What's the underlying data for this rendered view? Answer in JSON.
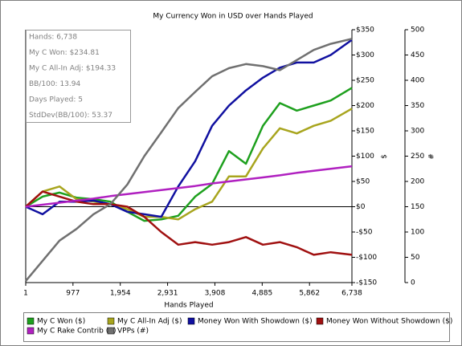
{
  "chart_data": {
    "type": "line",
    "title": "My Currency Won in USD over Hands Played",
    "xlabel": "Hands Played",
    "ylabel": "$",
    "y2label": "#",
    "x": [
      1,
      350,
      700,
      1050,
      1400,
      1750,
      2100,
      2450,
      2800,
      3150,
      3500,
      3850,
      4200,
      4550,
      4900,
      5250,
      5600,
      5950,
      6300,
      6738
    ],
    "xlim": [
      1,
      6738
    ],
    "xticks": [
      1,
      977,
      {
        "value": 1954,
        "label": "1,954"
      },
      {
        "value": 2931,
        "label": "2,931"
      },
      {
        "value": 3908,
        "label": "3,908"
      },
      {
        "value": 4885,
        "label": "4,885"
      },
      {
        "value": 5862,
        "label": "5,862"
      },
      {
        "value": 6738,
        "label": "6,738"
      }
    ],
    "ylim": [
      -150,
      350
    ],
    "yticks": [
      {
        "value": -150,
        "label": "-$150"
      },
      {
        "value": -100,
        "label": "-$100"
      },
      {
        "value": -50,
        "label": "-$50"
      },
      {
        "value": 0,
        "label": "$0"
      },
      {
        "value": 50,
        "label": "$50"
      },
      {
        "value": 100,
        "label": "$100"
      },
      {
        "value": 150,
        "label": "$150"
      },
      {
        "value": 200,
        "label": "$200"
      },
      {
        "value": 250,
        "label": "$250"
      },
      {
        "value": 300,
        "label": "$300"
      },
      {
        "value": 350,
        "label": "$350"
      }
    ],
    "y2lim": [
      0,
      500
    ],
    "y2ticks": [
      0,
      50,
      100,
      150,
      200,
      250,
      300,
      350,
      400,
      450,
      500
    ],
    "annotations": [
      "Hands: 6,738",
      "My C Won: $234.81",
      "My C All-In Adj: $194.33",
      "BB/100: 13.94",
      "Days Played: 5",
      "StdDev(BB/100): 53.37"
    ],
    "series": [
      {
        "name": "My C Won ($)",
        "color": "#1ea01e",
        "values": [
          0,
          20,
          28,
          18,
          15,
          10,
          -10,
          -28,
          -25,
          -18,
          20,
          45,
          110,
          85,
          160,
          205,
          190,
          200,
          210,
          235
        ]
      },
      {
        "name": "My C All-In Adj ($)",
        "color": "#a8a51e",
        "values": [
          0,
          30,
          40,
          15,
          10,
          5,
          -5,
          -20,
          -20,
          -25,
          -5,
          10,
          60,
          60,
          115,
          155,
          145,
          160,
          170,
          194
        ]
      },
      {
        "name": "Money Won With Showdown ($)",
        "color": "#1010a0",
        "values": [
          0,
          -15,
          10,
          10,
          12,
          5,
          -10,
          -15,
          -20,
          40,
          90,
          160,
          200,
          230,
          255,
          275,
          285,
          285,
          300,
          330
        ]
      },
      {
        "name": "Money Won Without Showdown ($)",
        "color": "#a01010",
        "values": [
          0,
          30,
          20,
          10,
          5,
          5,
          0,
          -20,
          -50,
          -75,
          -70,
          -75,
          -70,
          -60,
          -75,
          -70,
          -80,
          -95,
          -90,
          -95
        ]
      },
      {
        "name": "My C Rake Contrib ($)",
        "color": "#b020c0",
        "values": [
          0,
          4,
          8,
          12,
          16,
          21,
          25,
          29,
          33,
          37,
          41,
          46,
          50,
          54,
          58,
          62,
          67,
          71,
          75,
          80
        ]
      },
      {
        "name": "VPPs (#)",
        "color": "#707070",
        "axis": "y2",
        "values": [
          3,
          43,
          83,
          106,
          135,
          155,
          194,
          250,
          297,
          345,
          377,
          408,
          424,
          432,
          428,
          420,
          440,
          460,
          472,
          482
        ]
      }
    ]
  }
}
